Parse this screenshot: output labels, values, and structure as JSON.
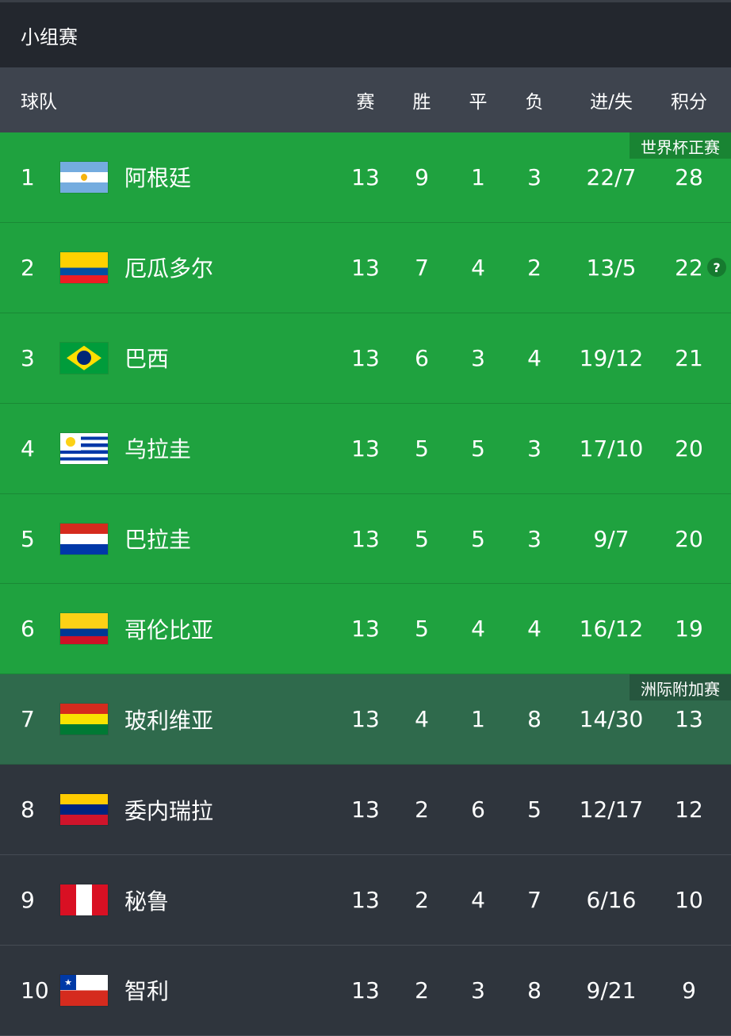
{
  "title": "小组赛",
  "columns": {
    "team": "球队",
    "played": "赛",
    "won": "胜",
    "draw": "平",
    "lost": "负",
    "goals": "进/失",
    "points": "积分"
  },
  "zones": {
    "qualify": "世界杯正赛",
    "playoff": "洲际附加赛"
  },
  "colors": {
    "qualify": "#1fa23f",
    "playoff": "#2f6a4c",
    "other": "#2f353d"
  },
  "rows": [
    {
      "rank": "1",
      "team": "阿根廷",
      "flag": "argentina-flag",
      "p": "13",
      "w": "9",
      "d": "1",
      "l": "3",
      "g": "22/7",
      "pts": "28"
    },
    {
      "rank": "2",
      "team": "厄瓜多尔",
      "flag": "ecuador-flag",
      "p": "13",
      "w": "7",
      "d": "4",
      "l": "2",
      "g": "13/5",
      "pts": "22",
      "note": "?"
    },
    {
      "rank": "3",
      "team": "巴西",
      "flag": "brazil-flag",
      "p": "13",
      "w": "6",
      "d": "3",
      "l": "4",
      "g": "19/12",
      "pts": "21"
    },
    {
      "rank": "4",
      "team": "乌拉圭",
      "flag": "uruguay-flag",
      "p": "13",
      "w": "5",
      "d": "5",
      "l": "3",
      "g": "17/10",
      "pts": "20"
    },
    {
      "rank": "5",
      "team": "巴拉圭",
      "flag": "paraguay-flag",
      "p": "13",
      "w": "5",
      "d": "5",
      "l": "3",
      "g": "9/7",
      "pts": "20"
    },
    {
      "rank": "6",
      "team": "哥伦比亚",
      "flag": "colombia-flag",
      "p": "13",
      "w": "5",
      "d": "4",
      "l": "4",
      "g": "16/12",
      "pts": "19"
    },
    {
      "rank": "7",
      "team": "玻利维亚",
      "flag": "bolivia-flag",
      "p": "13",
      "w": "4",
      "d": "1",
      "l": "8",
      "g": "14/30",
      "pts": "13"
    },
    {
      "rank": "8",
      "team": "委内瑞拉",
      "flag": "venezuela-flag",
      "p": "13",
      "w": "2",
      "d": "6",
      "l": "5",
      "g": "12/17",
      "pts": "12"
    },
    {
      "rank": "9",
      "team": "秘鲁",
      "flag": "peru-flag",
      "p": "13",
      "w": "2",
      "d": "4",
      "l": "7",
      "g": "6/16",
      "pts": "10"
    },
    {
      "rank": "10",
      "team": "智利",
      "flag": "chile-flag",
      "p": "13",
      "w": "2",
      "d": "3",
      "l": "8",
      "g": "9/21",
      "pts": "9"
    }
  ]
}
